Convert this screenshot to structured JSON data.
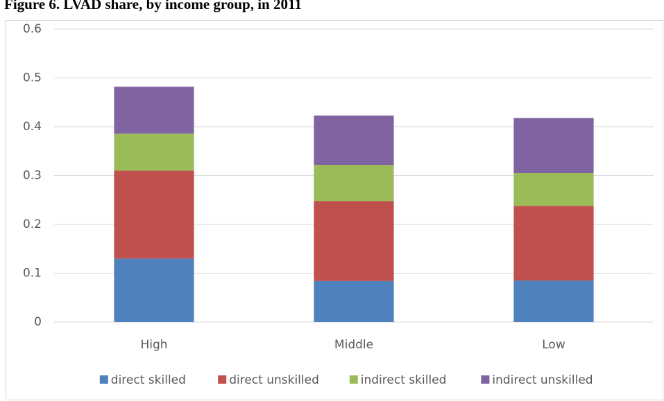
{
  "chart_data": {
    "type": "stacked-bar",
    "title": "Figure 6. LVAD share, by income group, in 2011",
    "categories": [
      "High",
      "Middle",
      "Low"
    ],
    "series": [
      {
        "name": "direct skilled",
        "color": "#4f81bd",
        "values": [
          0.13,
          0.084,
          0.085
        ]
      },
      {
        "name": "direct unskilled",
        "color": "#c0504d",
        "values": [
          0.18,
          0.164,
          0.153
        ]
      },
      {
        "name": "indirect skilled",
        "color": "#9bbb59",
        "values": [
          0.076,
          0.074,
          0.067
        ]
      },
      {
        "name": "indirect unskilled",
        "color": "#8064a2",
        "values": [
          0.096,
          0.101,
          0.113
        ]
      }
    ],
    "ylim": [
      0,
      0.6
    ],
    "yticks": [
      0,
      0.1,
      0.2,
      0.3,
      0.4,
      0.5,
      0.6
    ],
    "grid": true,
    "legend": "bottom"
  }
}
